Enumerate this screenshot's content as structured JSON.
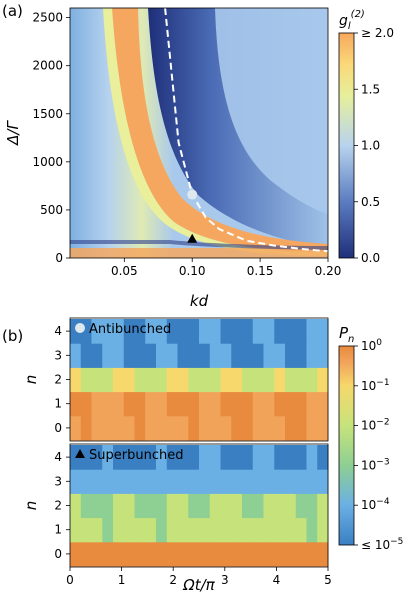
{
  "colors": {
    "heat_stops": [
      "#1f2f7a",
      "#5b7cc0",
      "#b8d3ee",
      "#e6ef9c",
      "#fbd879",
      "#f6a95f"
    ],
    "pn_stops": [
      "#3a7fc2",
      "#6bb0e4",
      "#8ecf93",
      "#c6e37b",
      "#f6d86c",
      "#f2a35a",
      "#e88b3e"
    ],
    "dashed_line": "#ffffff"
  },
  "chart_data": [
    {
      "type": "heatmap",
      "panel_label": "(a)",
      "xlabel": "kd",
      "ylabel": "Δ/Γ",
      "xlim": [
        0.01,
        0.2
      ],
      "ylim": [
        0,
        2600
      ],
      "x_ticks": [
        0.05,
        0.1,
        0.15,
        0.2
      ],
      "x_tick_labels": [
        "0.05",
        "0.10",
        "0.15",
        "0.20"
      ],
      "y_ticks": [
        0,
        500,
        1000,
        1500,
        2000,
        2500
      ],
      "y_tick_labels": [
        "0",
        "500",
        "1000",
        "1500",
        "2000",
        "2500"
      ],
      "colorbar": {
        "label": "g_l^(2)",
        "ticks": [
          0.0,
          0.5,
          1.0,
          1.5,
          2.0
        ],
        "tick_labels": [
          "0.0",
          "0.5",
          "1.0",
          "1.5",
          "≥ 2.0"
        ],
        "range": [
          0,
          2
        ]
      },
      "markers": [
        {
          "name": "Antibunched",
          "symbol": "circle",
          "kd": 0.1,
          "delta": 660
        },
        {
          "name": "Superbunched",
          "symbol": "triangle",
          "kd": 0.1,
          "delta": 200
        }
      ],
      "dashed_curve": {
        "kd": [
          0.08,
          0.09,
          0.1,
          0.11,
          0.12,
          0.14,
          0.16,
          0.18,
          0.2
        ],
        "delta": [
          2600,
          1200,
          660,
          420,
          300,
          180,
          130,
          95,
          70
        ]
      }
    },
    {
      "type": "heatmap",
      "panel_label": "(b)",
      "ylabel": "n",
      "xlabel": "Ωt/π",
      "xlim": [
        0,
        5
      ],
      "x_ticks": [
        0,
        1,
        2,
        3,
        4,
        5
      ],
      "x_tick_labels": [
        "0",
        "1",
        "2",
        "3",
        "4",
        "5"
      ],
      "y_ticks": [
        0,
        1,
        2,
        3,
        4
      ],
      "y_tick_labels": [
        "0",
        "1",
        "2",
        "3",
        "4"
      ],
      "subplots": [
        {
          "title": "Antibunched",
          "symbol": "circle",
          "log10_pn": [
            -0.6,
            -0.4,
            -2.2,
            -4.6,
            -4.6
          ]
        },
        {
          "title": "Superbunched",
          "symbol": "triangle",
          "log10_pn": [
            -0.05,
            -2.6,
            -2.9,
            -4.2,
            -4.8
          ]
        }
      ],
      "colorbar": {
        "label": "P_n",
        "ticks": [
          0,
          -1,
          -2,
          -3,
          -4,
          -5
        ],
        "tick_labels": [
          "10^0",
          "10^−1",
          "10^−2",
          "10^−3",
          "10^−4",
          "≤ 10^−5"
        ]
      }
    }
  ]
}
